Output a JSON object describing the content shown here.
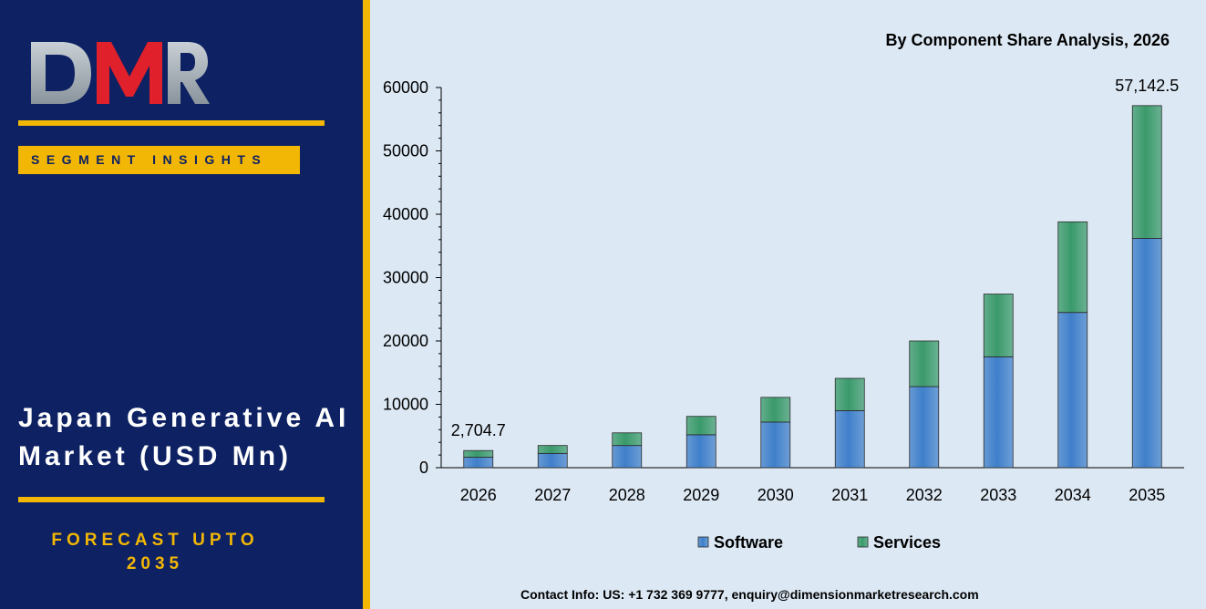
{
  "logo_text": "DMR",
  "brand_colors": {
    "navy": "#0d2163",
    "gold": "#f2b705",
    "logo_red": "#e0202a",
    "logo_gray": "#c9d0d6",
    "software": "#3f7fca",
    "services": "#3a9a6a"
  },
  "segment_label": "SEGMENT INSIGHTS",
  "market_title": "Japan Generative AI Market (USD Mn)",
  "forecast_line1": "FORECAST UPTO",
  "forecast_line2": "2035",
  "chart_title": "By Component Share Analysis, 2026",
  "contact": "Contact Info: US: +1 732 369 9777, enquiry@dimensionmarketresearch.com",
  "chart_data": {
    "type": "bar",
    "stacked": true,
    "title": "By Component Share Analysis, 2026",
    "categories": [
      "2026",
      "2027",
      "2028",
      "2029",
      "2030",
      "2031",
      "2032",
      "2033",
      "2034",
      "2035"
    ],
    "series": [
      {
        "name": "Software",
        "color": "#3f7fca",
        "values": [
          1650,
          2250,
          3500,
          5200,
          7200,
          9000,
          12800,
          17500,
          24500,
          36200
        ]
      },
      {
        "name": "Services",
        "color": "#3a9a6a",
        "values": [
          1054.7,
          1250,
          2000,
          2900,
          3900,
          5100,
          7200,
          9900,
          14300,
          20942.5
        ]
      }
    ],
    "totals": [
      2704.7,
      3500,
      5500,
      8100,
      11100,
      14100,
      20000,
      27400,
      38800,
      57142.5
    ],
    "data_labels": [
      {
        "category": "2026",
        "text": "2,704.7"
      },
      {
        "category": "2035",
        "text": "57,142.5"
      }
    ],
    "ylim": [
      0,
      60000
    ],
    "yticks": [
      "0",
      "10000",
      "20000",
      "30000",
      "40000",
      "50000",
      "60000"
    ],
    "legend_position": "bottom",
    "grid": false
  }
}
